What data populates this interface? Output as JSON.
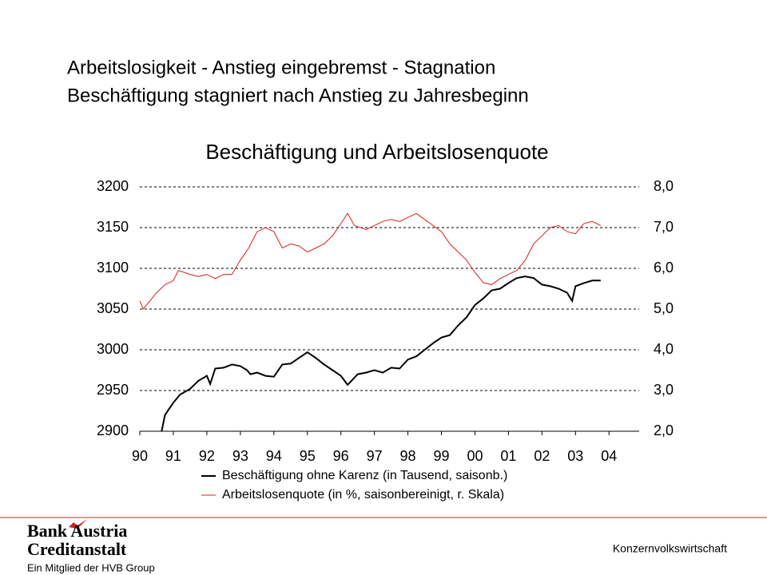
{
  "header": {
    "title_line1": "Arbeitslosigkeit - Anstieg eingebremst - Stagnation",
    "title_line2": "Beschäftigung stagniert nach Anstieg zu Jahresbeginn"
  },
  "chart_data": {
    "type": "line",
    "title": "Beschäftigung und Arbeitslosenquote",
    "xlim": [
      1990,
      2004.9
    ],
    "xticks": [
      {
        "value": 1990,
        "label": "90"
      },
      {
        "value": 1991,
        "label": "91"
      },
      {
        "value": 1992,
        "label": "92"
      },
      {
        "value": 1993,
        "label": "93"
      },
      {
        "value": 1994,
        "label": "94"
      },
      {
        "value": 1995,
        "label": "95"
      },
      {
        "value": 1996,
        "label": "96"
      },
      {
        "value": 1997,
        "label": "97"
      },
      {
        "value": 1998,
        "label": "98"
      },
      {
        "value": 1999,
        "label": "99"
      },
      {
        "value": 2000,
        "label": "00"
      },
      {
        "value": 2001,
        "label": "01"
      },
      {
        "value": 2002,
        "label": "02"
      },
      {
        "value": 2003,
        "label": "03"
      },
      {
        "value": 2004,
        "label": "04"
      }
    ],
    "ylim": [
      2900,
      3200
    ],
    "yticks": [
      2900,
      2950,
      3000,
      3050,
      3100,
      3150,
      3200
    ],
    "y2lim": [
      2,
      8
    ],
    "y2ticks": [
      {
        "value": 2,
        "label": "2,0"
      },
      {
        "value": 3,
        "label": "3,0"
      },
      {
        "value": 4,
        "label": "4,0"
      },
      {
        "value": 5,
        "label": "5,0"
      },
      {
        "value": 6,
        "label": "6,0"
      },
      {
        "value": 7,
        "label": "7,0"
      },
      {
        "value": 8,
        "label": "8,0"
      }
    ],
    "grid": true,
    "series": [
      {
        "name": "Beschäftigung ohne Karenz (in Tausend, saisonb.)",
        "color": "#000000",
        "x": [
          1990.65,
          1990.75,
          1991.0,
          1991.2,
          1991.5,
          1991.75,
          1992.0,
          1992.1,
          1992.25,
          1992.5,
          1992.75,
          1993.0,
          1993.2,
          1993.3,
          1993.5,
          1993.75,
          1994.0,
          1994.25,
          1994.5,
          1994.75,
          1995.0,
          1995.25,
          1995.5,
          1995.75,
          1996.0,
          1996.2,
          1996.5,
          1996.75,
          1997.0,
          1997.25,
          1997.5,
          1997.75,
          1998.0,
          1998.25,
          1998.5,
          1998.75,
          1999.0,
          1999.25,
          1999.5,
          1999.75,
          2000.0,
          2000.25,
          2000.5,
          2000.75,
          2001.0,
          2001.25,
          2001.5,
          2001.75,
          2002.0,
          2002.25,
          2002.5,
          2002.75,
          2002.9,
          2003.0,
          2003.25,
          2003.5,
          2003.75
        ],
        "values": [
          2900,
          2920,
          2935,
          2945,
          2952,
          2962,
          2968,
          2958,
          2977,
          2978,
          2982,
          2980,
          2975,
          2970,
          2972,
          2968,
          2967,
          2982,
          2983,
          2990,
          2997,
          2990,
          2982,
          2975,
          2968,
          2957,
          2970,
          2972,
          2975,
          2972,
          2978,
          2977,
          2988,
          2992,
          3000,
          3008,
          3015,
          3018,
          3030,
          3040,
          3055,
          3063,
          3073,
          3075,
          3082,
          3088,
          3090,
          3088,
          3080,
          3078,
          3075,
          3070,
          3060,
          3078,
          3082,
          3085,
          3085
        ]
      },
      {
        "name": "Arbeitslosenquote (in %, saisonbereinigt, r. Skala)",
        "color": "#d62020",
        "axis": "y2",
        "x": [
          1990.0,
          1990.1,
          1990.5,
          1990.75,
          1991.0,
          1991.15,
          1991.5,
          1991.75,
          1992.0,
          1992.25,
          1992.5,
          1992.75,
          1993.0,
          1993.25,
          1993.5,
          1993.75,
          1994.0,
          1994.25,
          1994.5,
          1994.75,
          1995.0,
          1995.25,
          1995.5,
          1995.75,
          1996.0,
          1996.2,
          1996.4,
          1996.75,
          1997.0,
          1997.25,
          1997.5,
          1997.75,
          1998.0,
          1998.25,
          1998.5,
          1998.75,
          1999.0,
          1999.25,
          1999.5,
          1999.75,
          2000.0,
          2000.25,
          2000.5,
          2000.75,
          2001.0,
          2001.25,
          2001.5,
          2001.75,
          2002.0,
          2002.25,
          2002.5,
          2002.75,
          2003.0,
          2003.25,
          2003.5,
          2003.75
        ],
        "values": [
          5.2,
          5.0,
          5.4,
          5.6,
          5.7,
          5.95,
          5.85,
          5.8,
          5.85,
          5.75,
          5.85,
          5.85,
          6.2,
          6.5,
          6.9,
          7.0,
          6.9,
          6.5,
          6.6,
          6.55,
          6.4,
          6.5,
          6.6,
          6.8,
          7.1,
          7.35,
          7.05,
          6.95,
          7.05,
          7.15,
          7.2,
          7.15,
          7.25,
          7.35,
          7.2,
          7.05,
          6.9,
          6.6,
          6.4,
          6.2,
          5.9,
          5.65,
          5.6,
          5.75,
          5.85,
          5.95,
          6.2,
          6.6,
          6.8,
          7.0,
          7.05,
          6.9,
          6.85,
          7.1,
          7.15,
          7.05
        ]
      }
    ]
  },
  "footer": {
    "logo_line1": "Bank Austria",
    "logo_line2": "Creditanstalt",
    "logo_line3": "Ein Mitglied der HVB Group",
    "department": "Konzernvolkswirtschaft"
  }
}
